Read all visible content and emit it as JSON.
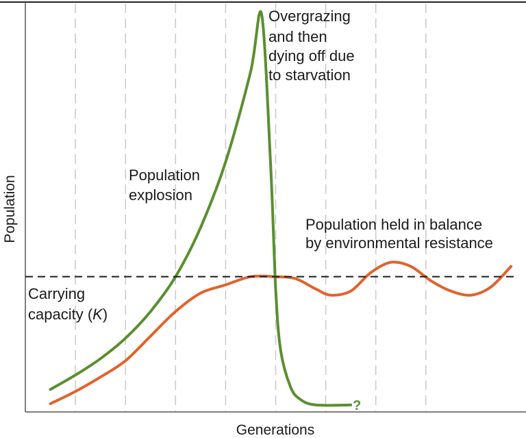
{
  "chart_data": {
    "type": "line",
    "title": "",
    "xlabel": "Generations",
    "ylabel": "Population",
    "xlim": [
      0,
      10
    ],
    "ylim": [
      0,
      10
    ],
    "grid": {
      "vertical_dashed": true,
      "horizontal": false
    },
    "gridlines_x": [
      1,
      2,
      3,
      4,
      5,
      6,
      7,
      8
    ],
    "series": [
      {
        "name": "",
        "color": "#5a8f2e",
        "points": [
          [
            0.5,
            0.55
          ],
          [
            1,
            0.9
          ],
          [
            1.5,
            1.3
          ],
          [
            2,
            1.8
          ],
          [
            2.5,
            2.45
          ],
          [
            3,
            3.3
          ],
          [
            3.5,
            4.5
          ],
          [
            4,
            6.1
          ],
          [
            4.5,
            8.3
          ],
          [
            4.72,
            9.7
          ],
          [
            4.9,
            6.0
          ],
          [
            5.0,
            3.0
          ],
          [
            5.1,
            1.5
          ],
          [
            5.3,
            0.6
          ],
          [
            5.5,
            0.3
          ],
          [
            5.8,
            0.17
          ],
          [
            6.5,
            0.17
          ]
        ]
      },
      {
        "name": "",
        "color": "#e3622c",
        "points": [
          [
            0.5,
            0.2
          ],
          [
            1,
            0.5
          ],
          [
            1.5,
            0.85
          ],
          [
            2,
            1.25
          ],
          [
            2.5,
            1.85
          ],
          [
            3,
            2.45
          ],
          [
            3.5,
            2.9
          ],
          [
            4,
            3.1
          ],
          [
            4.5,
            3.3
          ],
          [
            5,
            3.3
          ],
          [
            5.4,
            3.25
          ],
          [
            5.8,
            3.0
          ],
          [
            6.1,
            2.85
          ],
          [
            6.5,
            2.95
          ],
          [
            6.9,
            3.4
          ],
          [
            7.3,
            3.65
          ],
          [
            7.7,
            3.55
          ],
          [
            8.1,
            3.2
          ],
          [
            8.5,
            2.95
          ],
          [
            8.9,
            2.85
          ],
          [
            9.3,
            3.05
          ],
          [
            9.7,
            3.55
          ]
        ]
      }
    ],
    "carrying_capacity": {
      "y": 3.3,
      "color": "#1a1a1a",
      "style": "dashed"
    },
    "annotations": {
      "overgrazing": [
        "Overgrazing",
        "and then",
        "dying off due",
        "to starvation"
      ],
      "explosion": [
        "Population",
        "explosion"
      ],
      "balance": [
        "Population held in balance",
        "by environmental resistance"
      ],
      "carrying_line1": "Carrying",
      "carrying_line2_prefix": "capacity (",
      "carrying_k": "K",
      "carrying_line2_suffix": ")",
      "question": "?"
    }
  }
}
